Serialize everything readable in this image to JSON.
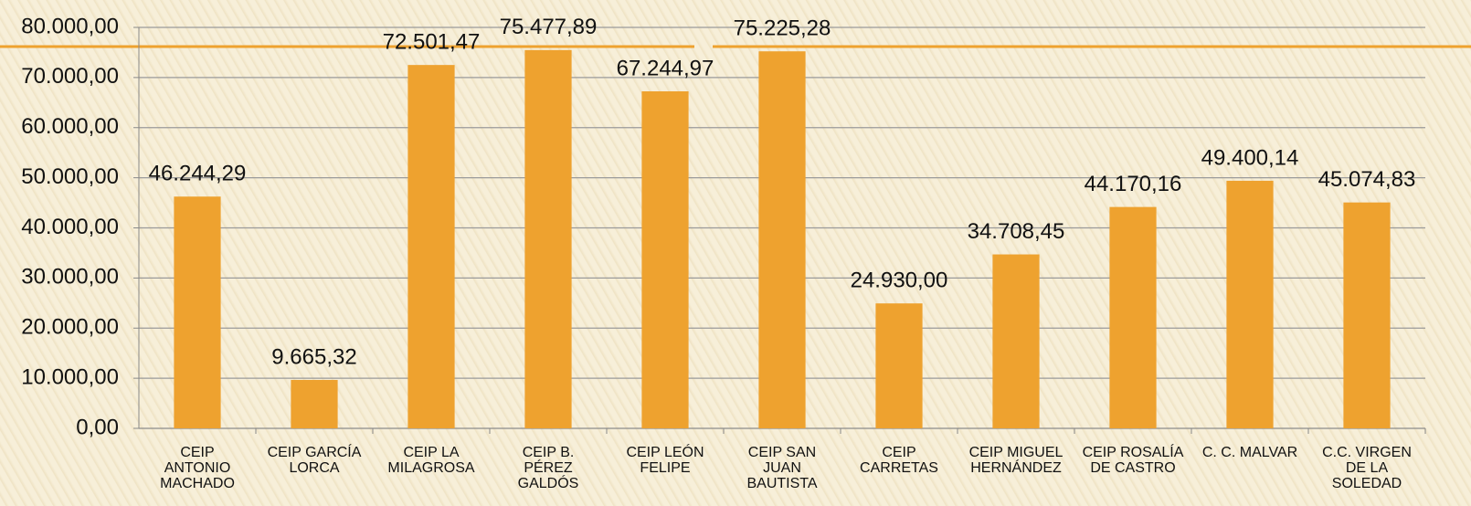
{
  "chart_data": {
    "type": "bar",
    "categories": [
      "CEIP\nANTONIO\nMACHADO",
      "CEIP GARCÍA\nLORCA",
      "CEIP LA\nMILAGROSA",
      "CEIP B.\nPÉREZ\nGALDÓS",
      "CEIP LEÓN\nFELIPE",
      "CEIP SAN\nJUAN\nBAUTISTA",
      "CEIP\nCARRETAS",
      "CEIP MIGUEL\nHERNÁNDEZ",
      "CEIP ROSALÍA\nDE CASTRO",
      "C. C. MALVAR",
      "C.C. VIRGEN\nDE LA\nSOLEDAD"
    ],
    "values": [
      46244.29,
      9665.32,
      72501.47,
      75477.89,
      67244.97,
      75225.28,
      24930.0,
      34708.45,
      44170.16,
      49400.14,
      45074.83
    ],
    "value_labels": [
      "46.244,29",
      "9.665,32",
      "72.501,47",
      "75.477,89",
      "67.244,97",
      "75.225,28",
      "24.930,00",
      "34.708,45",
      "44.170,16",
      "49.400,14",
      "45.074,83"
    ],
    "color": "#eea22f",
    "ylim": [
      0,
      80000
    ],
    "yticks": [
      {
        "value": 0,
        "label": "0,00"
      },
      {
        "value": 10000,
        "label": "10.000,00"
      },
      {
        "value": 20000,
        "label": "20.000,00"
      },
      {
        "value": 30000,
        "label": "30.000,00"
      },
      {
        "value": 40000,
        "label": "40.000,00"
      },
      {
        "value": 50000,
        "label": "50.000,00"
      },
      {
        "value": 60000,
        "label": "60.000,00"
      },
      {
        "value": 70000,
        "label": "70.000,00"
      },
      {
        "value": 80000,
        "label": "80.000,00"
      }
    ],
    "grid": true
  }
}
